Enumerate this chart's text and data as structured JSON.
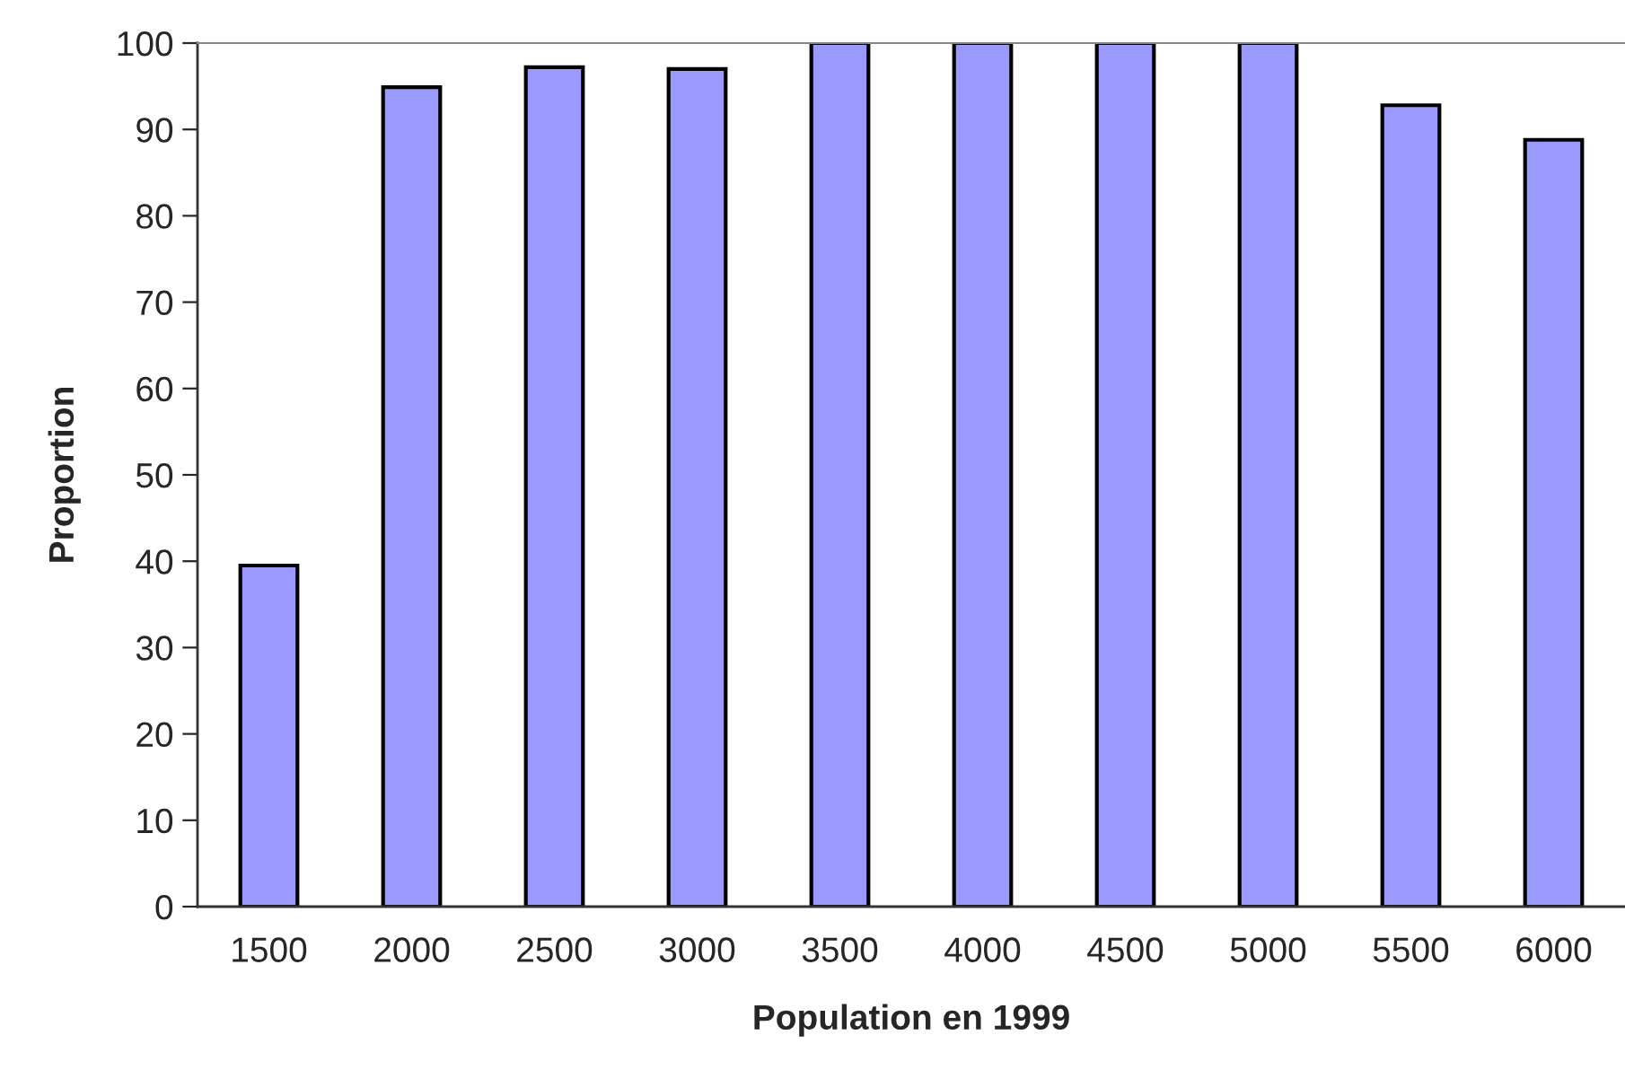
{
  "chart_data": {
    "type": "bar",
    "xlabel": "Population en 1999",
    "ylabel": "Proportion",
    "categories": [
      "1500",
      "2000",
      "2500",
      "3000",
      "3500",
      "4000",
      "4500",
      "5000",
      "5500",
      "6000"
    ],
    "values": [
      39.5,
      94.9,
      97.2,
      97.0,
      100,
      100,
      100,
      100,
      92.8,
      88.8
    ],
    "color": "#9999ff",
    "ylim": [
      0,
      100
    ],
    "yticks": [
      0,
      10,
      20,
      30,
      40,
      50,
      60,
      70,
      80,
      90,
      100
    ],
    "grid": false,
    "legend": false
  }
}
